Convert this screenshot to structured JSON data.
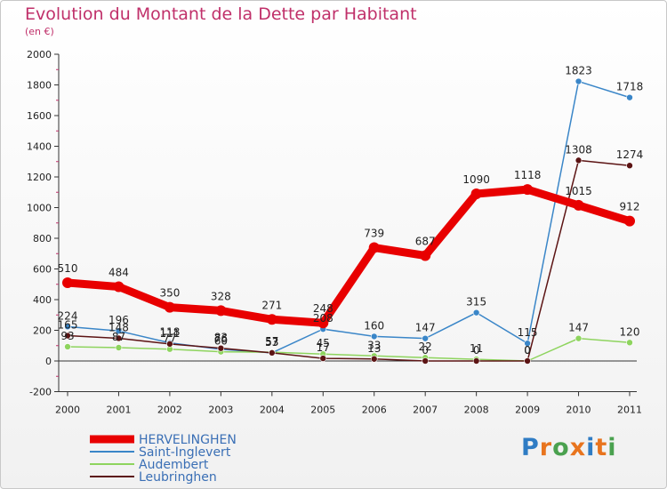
{
  "title": "Evolution du Montant de la Dette par Habitant",
  "subtitle": "(en €)",
  "brand": {
    "letters": [
      "P",
      "r",
      "o",
      "x",
      "i",
      "t",
      "i"
    ],
    "colors": [
      "#2f7cc4",
      "#e8741e",
      "#4aa14f",
      "#e8741e",
      "#2f7cc4",
      "#e8741e",
      "#4aa14f"
    ]
  },
  "chart_data": {
    "type": "line",
    "categories": [
      "2000",
      "2001",
      "2002",
      "2003",
      "2004",
      "2005",
      "2006",
      "2007",
      "2008",
      "2009",
      "2010",
      "2011"
    ],
    "ylim": [
      -200,
      2000
    ],
    "yticks": [
      -200,
      0,
      200,
      400,
      600,
      800,
      1000,
      1200,
      1400,
      1600,
      1800,
      2000
    ],
    "grid": false,
    "legend_position": "bottom-left",
    "series": [
      {
        "name": "HERVELINGHEN",
        "color": "#e80000",
        "values": [
          510,
          484,
          350,
          328,
          271,
          248,
          739,
          687,
          1090,
          1118,
          1015,
          912
        ]
      },
      {
        "name": "Saint-Inglevert",
        "color": "#3a86c8",
        "values": [
          224,
          196,
          118,
          76,
          53,
          208,
          160,
          147,
          315,
          115,
          1823,
          1718
        ]
      },
      {
        "name": "Audembert",
        "color": "#8ed45e",
        "values": [
          93,
          87,
          77,
          60,
          57,
          45,
          33,
          22,
          11,
          0,
          147,
          120
        ]
      },
      {
        "name": "Leubringhen",
        "color": "#5c1414",
        "values": [
          165,
          148,
          111,
          83,
          53,
          17,
          13,
          0,
          0,
          0,
          1308,
          1274
        ]
      }
    ]
  }
}
